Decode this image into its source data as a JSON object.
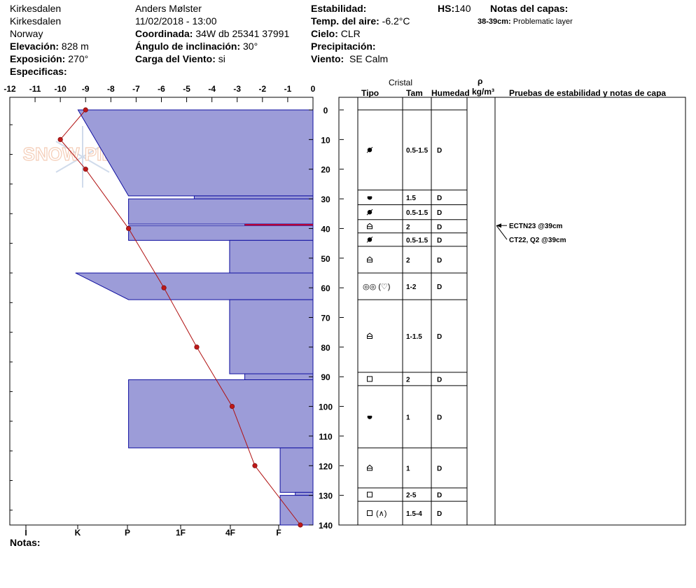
{
  "header": {
    "location": "Kirkesdalen",
    "sublocation": "Kirkesdalen",
    "country": "Norway",
    "elevation_label": "Elevación:",
    "elevation_value": "828 m",
    "exposure_label": "Exposición:",
    "exposure_value": "270°",
    "specifics_label": "Especificas:",
    "observer": "Anders Mølster",
    "datetime": "11/02/2018 - 13:00",
    "coord_label": "Coordinada:",
    "coord_value": "34W db 25341 37991",
    "slope_label": "Ángulo de inclinación:",
    "slope_value": "30°",
    "windload_label": "Carga del Viento:",
    "windload_value": "si",
    "stability_label": "Estabilidad:",
    "airtemp_label": "Temp. del aire:",
    "airtemp_value": "-6.2°C",
    "sky_label": "Cielo:",
    "sky_value": "CLR",
    "precip_label": "Precipitación:",
    "wind_label": "Viento:",
    "wind_value": "SE Calm",
    "hs_label": "HS:",
    "hs_value": "140",
    "layer_notes_label": "Notas del capas:",
    "layer_note_depth": "38-39cm:",
    "layer_note_text": "Problematic layer"
  },
  "columns": {
    "crystal": "Cristal",
    "type": "Tipo",
    "size": "Tam",
    "humidity": "Humedad",
    "rho": "ρ",
    "density_unit": "kg/m³",
    "tests": "Pruebas de estabilidad y notas de capa"
  },
  "notes_label": "Notas:",
  "watermark": "SNOW PILOT",
  "chart_data": {
    "type": "snow-profile",
    "temperature_axis": {
      "ticks": [
        -12,
        -11,
        -10,
        -9,
        -8,
        -7,
        -6,
        -5,
        -4,
        -3,
        -2,
        -1,
        0
      ],
      "range": [
        -12,
        0
      ]
    },
    "depth_axis": {
      "ticks": [
        0,
        10,
        20,
        30,
        40,
        50,
        60,
        70,
        80,
        90,
        100,
        110,
        120,
        130,
        140
      ],
      "range": [
        0,
        140
      ]
    },
    "hardness_axis": {
      "ticks": [
        "I",
        "K",
        "P",
        "1F",
        "4F",
        "F"
      ]
    },
    "temperature_profile": [
      {
        "depth": 0,
        "temp": -9.0
      },
      {
        "depth": 10,
        "temp": -10.0
      },
      {
        "depth": 20,
        "temp": -9.0
      },
      {
        "depth": 40,
        "temp": -7.3
      },
      {
        "depth": 60,
        "temp": -5.9
      },
      {
        "depth": 80,
        "temp": -4.6
      },
      {
        "depth": 100,
        "temp": -3.2
      },
      {
        "depth": 120,
        "temp": -2.3
      },
      {
        "depth": 140,
        "temp": -0.5
      }
    ],
    "hardness_profile": [
      {
        "top": 0,
        "bottom": 29,
        "hardness_top": -9.3,
        "hardness_bottom": -7.3
      },
      {
        "top": 29,
        "bottom": 30,
        "hardness_top": -4.7,
        "hardness_bottom": -4.7
      },
      {
        "top": 30,
        "bottom": 38.5,
        "hardness_top": -7.3,
        "hardness_bottom": -7.3
      },
      {
        "top": 38.5,
        "bottom": 39,
        "hardness_top": -2.7,
        "hardness_bottom": -2.7
      },
      {
        "top": 39,
        "bottom": 44,
        "hardness_top": -7.3,
        "hardness_bottom": -7.3
      },
      {
        "top": 44,
        "bottom": 55,
        "hardness_top": -3.3,
        "hardness_bottom": -3.3
      },
      {
        "top": 55,
        "bottom": 64,
        "hardness_top": -9.4,
        "hardness_bottom": -7.3
      },
      {
        "top": 64,
        "bottom": 89,
        "hardness_top": -3.3,
        "hardness_bottom": -3.3
      },
      {
        "top": 89,
        "bottom": 91,
        "hardness_top": -2.7,
        "hardness_bottom": -2.7
      },
      {
        "top": 91,
        "bottom": 114,
        "hardness_top": -7.3,
        "hardness_bottom": -7.3
      },
      {
        "top": 114,
        "bottom": 129,
        "hardness_top": -1.3,
        "hardness_bottom": -1.3
      },
      {
        "top": 129,
        "bottom": 130,
        "hardness_top": -0.7,
        "hardness_bottom": -0.7
      },
      {
        "top": 130,
        "bottom": 140,
        "hardness_top": -1.3,
        "hardness_bottom": -1.3
      }
    ],
    "highlight_layer": {
      "top": 38.5,
      "bottom": 39,
      "color": "#c00030"
    },
    "layers": [
      {
        "top": 0,
        "bottom": 27,
        "type": "rounding-faceted",
        "size": "0.5-1.5",
        "humidity": "D"
      },
      {
        "top": 27,
        "bottom": 32,
        "type": "rounded",
        "size": "1.5",
        "humidity": "D"
      },
      {
        "top": 32,
        "bottom": 37,
        "type": "rounding-faceted",
        "size": "0.5-1.5",
        "humidity": "D"
      },
      {
        "top": 37,
        "bottom": 41.5,
        "type": "depth-hoar",
        "size": "2",
        "humidity": "D"
      },
      {
        "top": 41.5,
        "bottom": 46,
        "type": "rounding-faceted",
        "size": "0.5-1.5",
        "humidity": "D"
      },
      {
        "top": 46,
        "bottom": 55,
        "type": "depth-hoar",
        "size": "2",
        "humidity": "D"
      },
      {
        "top": 55,
        "bottom": 64,
        "type": "melt-forms",
        "type_text": "◎◎ (♡)",
        "size": "1-2",
        "humidity": "D"
      },
      {
        "top": 64,
        "bottom": 88.5,
        "type": "depth-hoar",
        "size": "1-1.5",
        "humidity": "D"
      },
      {
        "top": 88.5,
        "bottom": 93,
        "type": "faceted",
        "size": "2",
        "humidity": "D"
      },
      {
        "top": 93,
        "bottom": 114,
        "type": "rounded",
        "size": "1",
        "humidity": "D"
      },
      {
        "top": 114,
        "bottom": 127.5,
        "type": "depth-hoar",
        "size": "1",
        "humidity": "D"
      },
      {
        "top": 127.5,
        "bottom": 132,
        "type": "faceted",
        "size": "2-5",
        "humidity": "D"
      },
      {
        "top": 132,
        "bottom": 140,
        "type": "faceted-depthhoar",
        "type_text": "(∧)",
        "size": "1.5-4",
        "humidity": "D"
      }
    ],
    "stability_tests": [
      {
        "text": "ECTN23 @39cm",
        "depth": 39
      },
      {
        "text": "CT22, Q2 @39cm",
        "depth": 39
      }
    ]
  }
}
